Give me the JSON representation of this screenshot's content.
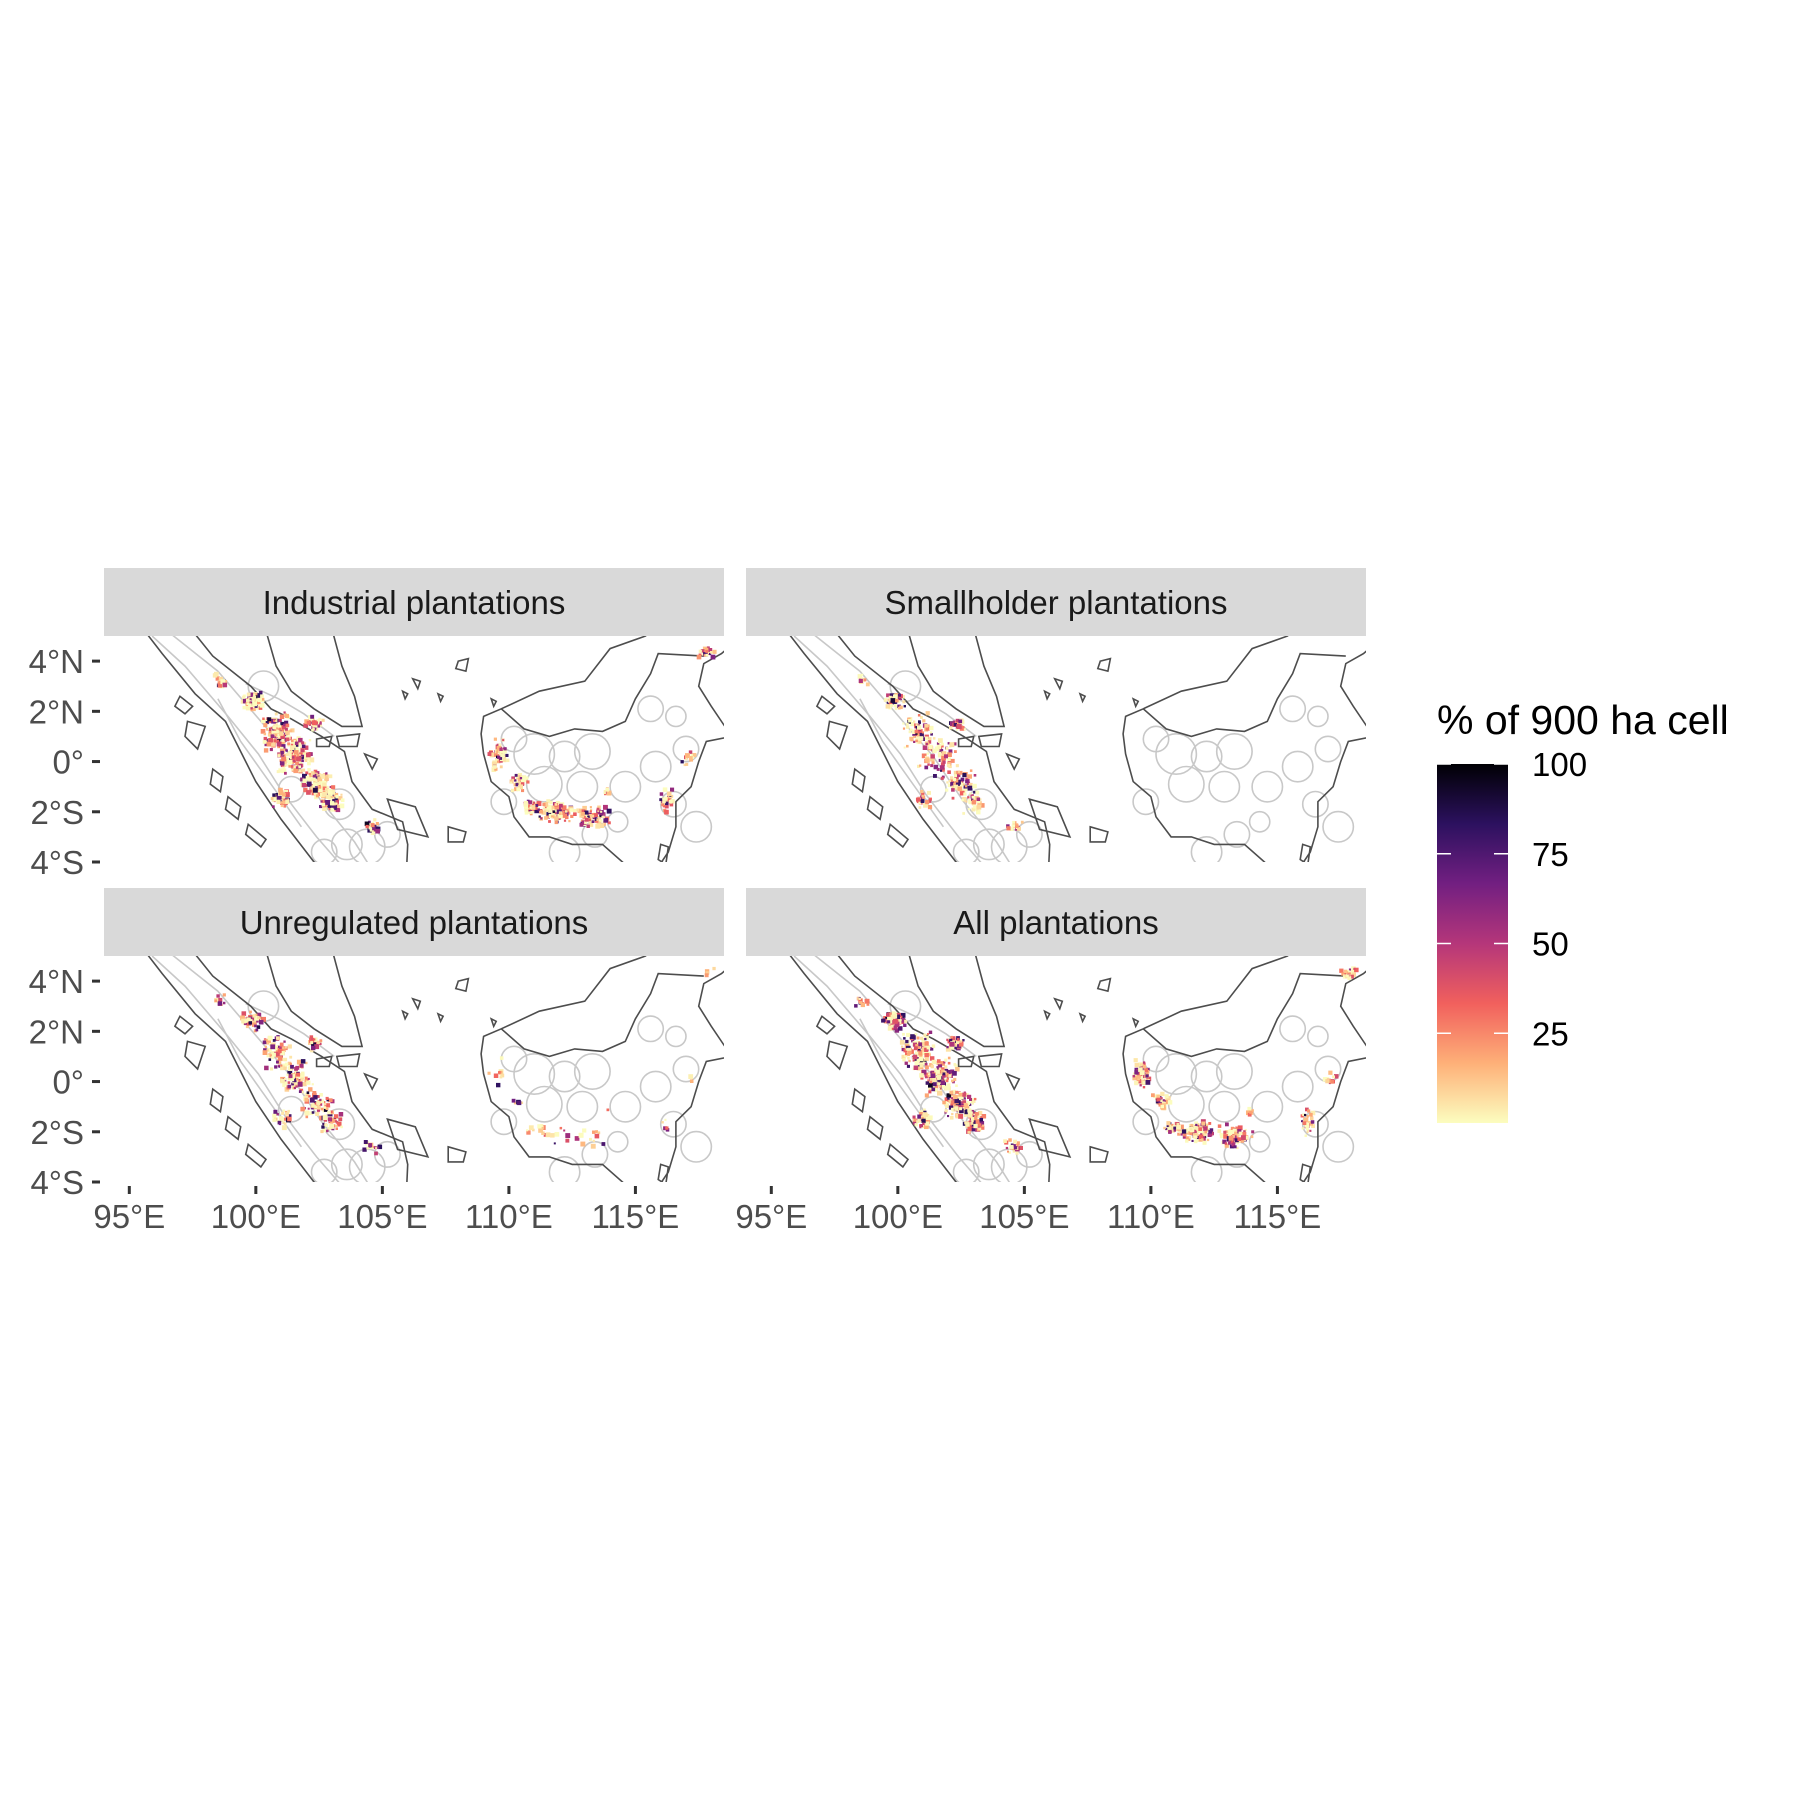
{
  "map": {
    "panels": [
      {
        "id": "industrial",
        "label": "Industrial plantations",
        "intensity": 1.0,
        "borneo_share": 1.0
      },
      {
        "id": "smallholder",
        "label": "Smallholder plantations",
        "intensity": 0.55,
        "borneo_share": 0.0
      },
      {
        "id": "unregulated",
        "label": "Unregulated plantations",
        "intensity": 0.6,
        "borneo_share": 0.25
      },
      {
        "id": "all",
        "label": "All plantations",
        "intensity": 1.0,
        "borneo_share": 1.0
      }
    ],
    "lat_ticks": [
      {
        "value": 4,
        "label": "4°N"
      },
      {
        "value": 2,
        "label": "2°N"
      },
      {
        "value": 0,
        "label": "0°"
      },
      {
        "value": -2,
        "label": "2°S"
      },
      {
        "value": -4,
        "label": "4°S"
      }
    ],
    "lon_ticks": [
      {
        "value": 95,
        "label": "95°E"
      },
      {
        "value": 100,
        "label": "100°E"
      },
      {
        "value": 105,
        "label": "105°E"
      },
      {
        "value": 110,
        "label": "110°E"
      },
      {
        "value": 115,
        "label": "115°E"
      }
    ],
    "lon_range": [
      94,
      118.5
    ],
    "lat_range": [
      -4,
      5
    ],
    "legend": {
      "title": "% of 900 ha cell",
      "ticks": [
        25,
        50,
        75,
        100
      ],
      "range": [
        0,
        100
      ],
      "colors": [
        "#fcfdbf",
        "#feb078",
        "#f1605d",
        "#b5367a",
        "#721f81",
        "#2c115f",
        "#000004"
      ]
    },
    "colors": {
      "strip_bg": "#d9d9d9",
      "coast": "#4d4d4d",
      "buffer": "#c8c8c8"
    }
  }
}
